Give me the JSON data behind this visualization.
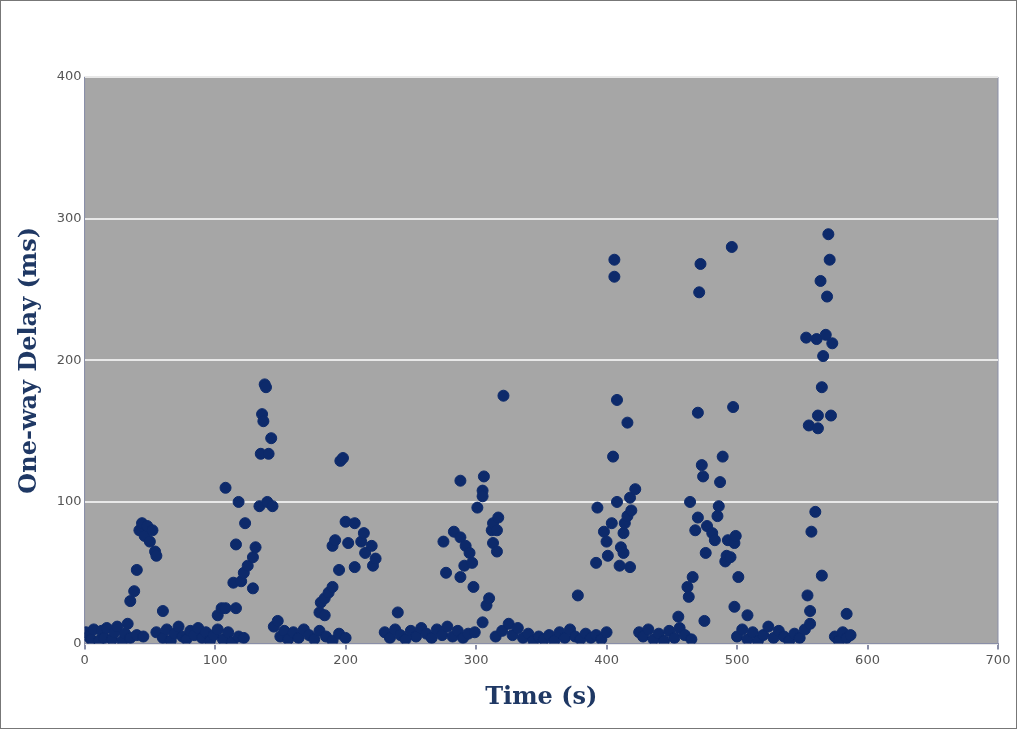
{
  "chart_data": {
    "type": "scatter",
    "xlabel": "Time (s)",
    "ylabel": "One-way Delay (ms)",
    "xlim": [
      0,
      700
    ],
    "xticks": [
      0,
      100,
      200,
      300,
      400,
      500,
      600,
      700
    ],
    "ylim": [
      0,
      400
    ],
    "yticks": [
      0,
      100,
      200,
      300,
      400
    ],
    "grid": "y",
    "legend": false,
    "marker": "circle",
    "series": [
      {
        "color": "#0d2a6b",
        "x": [
          1,
          3,
          5,
          7,
          11,
          13,
          15,
          17,
          21,
          23,
          25,
          29,
          31,
          33,
          35,
          40,
          45,
          55,
          60,
          63,
          66,
          69,
          72,
          75,
          78,
          81,
          84,
          87,
          90,
          93,
          96,
          99,
          102,
          106,
          110,
          113,
          118,
          122,
          145,
          148,
          150,
          153,
          156,
          160,
          164,
          168,
          172,
          176,
          180,
          185,
          190,
          195,
          200,
          230,
          234,
          238,
          242,
          246,
          250,
          254,
          258,
          262,
          266,
          270,
          274,
          278,
          282,
          286,
          290,
          294,
          315,
          320,
          325,
          328,
          332,
          336,
          340,
          344,
          348,
          352,
          356,
          360,
          364,
          368,
          372,
          376,
          380,
          384,
          388,
          392,
          396,
          400,
          425,
          428,
          432,
          436,
          440,
          444,
          448,
          452,
          456,
          460,
          465,
          500,
          504,
          508,
          512,
          516,
          520,
          524,
          528,
          532,
          536,
          540,
          544,
          548,
          552,
          556,
          575,
          578,
          581,
          584,
          587,
          35,
          38,
          40,
          42,
          44,
          46,
          48,
          50,
          52,
          54,
          55,
          60,
          102,
          105,
          108,
          108,
          114,
          116,
          116,
          118,
          120,
          122,
          123,
          125,
          129,
          129,
          131,
          134,
          135,
          136,
          137,
          138,
          139,
          140,
          141,
          143,
          144,
          180,
          181,
          184,
          184,
          187,
          190,
          190,
          192,
          195,
          196,
          198,
          200,
          202,
          207,
          207,
          212,
          214,
          215,
          220,
          221,
          223,
          240,
          275,
          277,
          283,
          288,
          288,
          288,
          291,
          292,
          295,
          297,
          298,
          299,
          301,
          305,
          305,
          305,
          306,
          308,
          310,
          312,
          313,
          313,
          316,
          316,
          317,
          321,
          378,
          392,
          393,
          398,
          400,
          401,
          404,
          405,
          406,
          406,
          408,
          408,
          410,
          411,
          413,
          413,
          414,
          416,
          416,
          418,
          418,
          419,
          422,
          455,
          462,
          463,
          464,
          466,
          468,
          470,
          470,
          471,
          472,
          473,
          474,
          475,
          476,
          477,
          481,
          483,
          485,
          486,
          487,
          489,
          491,
          492,
          493,
          495,
          496,
          497,
          498,
          498,
          499,
          501,
          508,
          553,
          554,
          555,
          556,
          557,
          560,
          561,
          562,
          562,
          564,
          565,
          565,
          566,
          568,
          569,
          570,
          571,
          572,
          573,
          584
        ],
        "values": [
          8,
          5,
          3,
          10,
          2,
          9,
          4,
          11,
          3,
          8,
          12,
          2,
          7,
          14,
          4,
          6,
          5,
          8,
          4,
          10,
          2,
          7,
          12,
          5,
          3,
          9,
          6,
          11,
          4,
          8,
          2,
          6,
          10,
          3,
          8,
          1,
          5,
          4,
          12,
          16,
          5,
          9,
          3,
          8,
          4,
          10,
          6,
          3,
          9,
          5,
          2,
          7,
          4,
          8,
          4,
          10,
          6,
          3,
          9,
          5,
          11,
          7,
          4,
          10,
          6,
          12,
          5,
          9,
          4,
          7,
          5,
          9,
          14,
          6,
          11,
          4,
          7,
          2,
          5,
          3,
          6,
          2,
          8,
          4,
          10,
          5,
          3,
          7,
          4,
          6,
          3,
          8,
          8,
          5,
          10,
          3,
          7,
          2,
          9,
          4,
          11,
          6,
          3,
          5,
          10,
          3,
          8,
          2,
          6,
          12,
          4,
          9,
          5,
          2,
          7,
          4,
          10,
          14,
          5,
          2,
          8,
          4,
          6,
          30,
          37,
          52,
          80,
          85,
          76,
          83,
          72,
          80,
          65,
          62,
          23,
          20,
          25,
          25,
          110,
          43,
          70,
          25,
          100,
          44,
          50,
          85,
          55,
          61,
          39,
          68,
          97,
          134,
          162,
          157,
          183,
          181,
          100,
          134,
          145,
          97,
          22,
          29,
          32,
          20,
          36,
          40,
          69,
          73,
          52,
          129,
          131,
          86,
          71,
          85,
          54,
          72,
          78,
          64,
          69,
          55,
          60,
          22,
          72,
          50,
          79,
          115,
          75,
          47,
          55,
          69,
          64,
          57,
          40,
          8,
          96,
          108,
          104,
          15,
          118,
          27,
          32,
          80,
          85,
          71,
          80,
          65,
          89,
          175,
          34,
          57,
          96,
          79,
          72,
          62,
          85,
          132,
          271,
          259,
          172,
          100,
          55,
          68,
          64,
          78,
          85,
          156,
          90,
          103,
          54,
          94,
          109,
          19,
          40,
          33,
          100,
          47,
          80,
          163,
          89,
          248,
          268,
          126,
          118,
          16,
          64,
          83,
          78,
          73,
          90,
          97,
          114,
          132,
          58,
          62,
          73,
          61,
          280,
          167,
          71,
          26,
          76,
          47,
          20,
          216,
          34,
          154,
          23,
          79,
          93,
          215,
          152,
          161,
          256,
          181,
          48,
          203,
          218,
          245,
          289,
          271,
          161,
          212,
          21
        ]
      }
    ]
  }
}
